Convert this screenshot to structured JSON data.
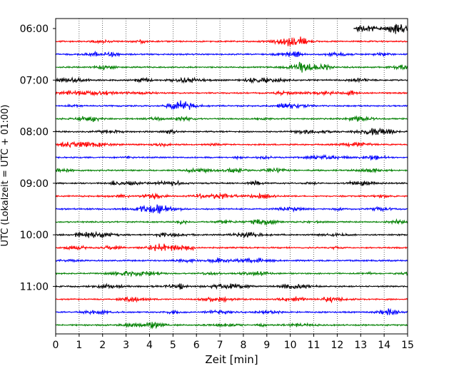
{
  "chart_data": {
    "type": "line",
    "title": "",
    "xlabel": "Zeit  [min]",
    "ylabel": "UTC (Lokalzeit = UTC + 01:00)",
    "xlim": [
      0,
      15
    ],
    "xticks": [
      "0",
      "1",
      "2",
      "3",
      "4",
      "5",
      "6",
      "7",
      "8",
      "9",
      "10",
      "11",
      "12",
      "13",
      "14",
      "15"
    ],
    "grid": "vertical dotted at each minute",
    "y_ticks": [
      "06:00",
      "07:00",
      "08:00",
      "09:00",
      "10:00",
      "11:00"
    ],
    "row_interval_minutes": 15,
    "row_colors": [
      "#000000",
      "#ff0000",
      "#0000ff",
      "#008000"
    ],
    "traces": [
      {
        "start": "06:00",
        "color": "#000000",
        "x_range": [
          12.7,
          15
        ]
      },
      {
        "start": "06:15",
        "color": "#ff0000",
        "x_range": [
          0,
          15
        ]
      },
      {
        "start": "06:30",
        "color": "#0000ff",
        "x_range": [
          0,
          15
        ]
      },
      {
        "start": "06:45",
        "color": "#008000",
        "x_range": [
          0,
          15
        ]
      },
      {
        "start": "07:00",
        "color": "#000000",
        "x_range": [
          0,
          15
        ]
      },
      {
        "start": "07:15",
        "color": "#ff0000",
        "x_range": [
          0,
          15
        ]
      },
      {
        "start": "07:30",
        "color": "#0000ff",
        "x_range": [
          0,
          15
        ]
      },
      {
        "start": "07:45",
        "color": "#008000",
        "x_range": [
          0,
          15
        ]
      },
      {
        "start": "08:00",
        "color": "#000000",
        "x_range": [
          0,
          15
        ]
      },
      {
        "start": "08:15",
        "color": "#ff0000",
        "x_range": [
          0,
          15
        ]
      },
      {
        "start": "08:30",
        "color": "#0000ff",
        "x_range": [
          0,
          15
        ]
      },
      {
        "start": "08:45",
        "color": "#008000",
        "x_range": [
          0,
          15
        ]
      },
      {
        "start": "09:00",
        "color": "#000000",
        "x_range": [
          0,
          15
        ]
      },
      {
        "start": "09:15",
        "color": "#ff0000",
        "x_range": [
          0,
          15
        ]
      },
      {
        "start": "09:30",
        "color": "#0000ff",
        "x_range": [
          0,
          15
        ]
      },
      {
        "start": "09:45",
        "color": "#008000",
        "x_range": [
          0,
          15
        ]
      },
      {
        "start": "10:00",
        "color": "#000000",
        "x_range": [
          0,
          15
        ]
      },
      {
        "start": "10:15",
        "color": "#ff0000",
        "x_range": [
          0,
          15
        ]
      },
      {
        "start": "10:30",
        "color": "#0000ff",
        "x_range": [
          0,
          15
        ]
      },
      {
        "start": "10:45",
        "color": "#008000",
        "x_range": [
          0,
          15
        ]
      },
      {
        "start": "11:00",
        "color": "#000000",
        "x_range": [
          0,
          15
        ]
      },
      {
        "start": "11:15",
        "color": "#ff0000",
        "x_range": [
          0,
          15
        ]
      },
      {
        "start": "11:30",
        "color": "#0000ff",
        "x_range": [
          0,
          15
        ]
      },
      {
        "start": "11:45",
        "color": "#008000",
        "x_range": [
          0,
          15
        ]
      }
    ]
  }
}
